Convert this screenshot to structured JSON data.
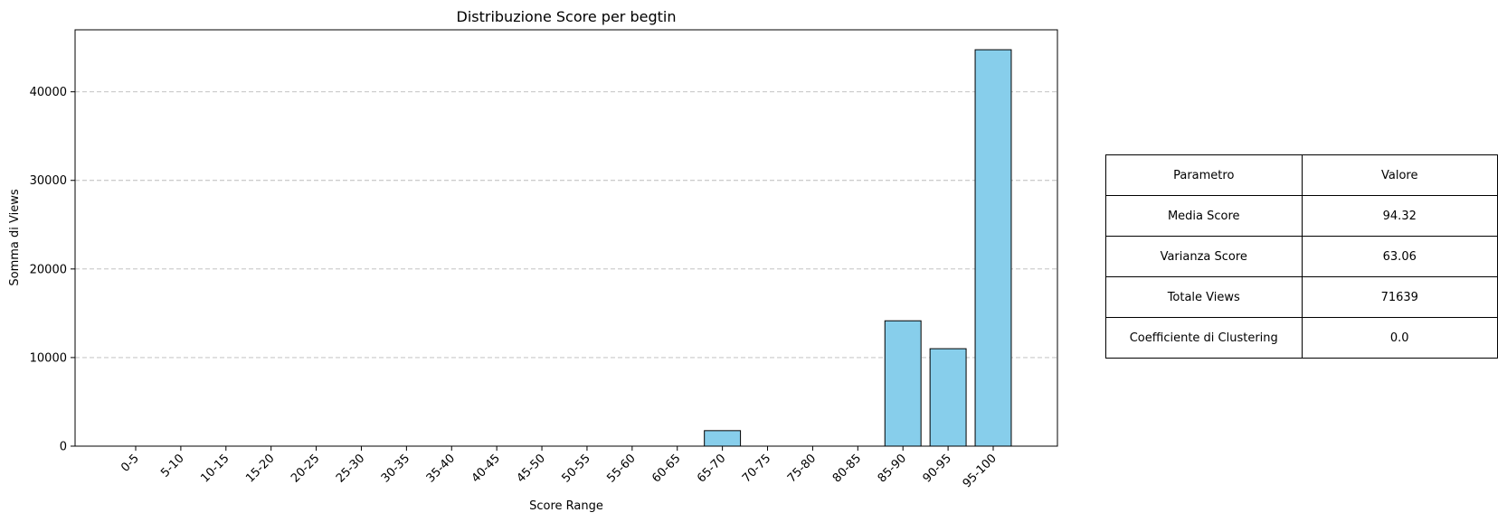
{
  "chart_data": {
    "type": "bar",
    "title": "Distribuzione Score per begtin",
    "xlabel": "Score Range",
    "ylabel": "Somma di Views",
    "categories": [
      "0-5",
      "5-10",
      "10-15",
      "15-20",
      "20-25",
      "25-30",
      "30-35",
      "35-40",
      "40-45",
      "45-50",
      "50-55",
      "55-60",
      "60-65",
      "65-70",
      "70-75",
      "75-80",
      "80-85",
      "85-90",
      "90-95",
      "95-100"
    ],
    "values": [
      0,
      0,
      0,
      0,
      0,
      0,
      0,
      0,
      0,
      0,
      0,
      0,
      0,
      1750,
      0,
      0,
      0,
      14150,
      11000,
      44750
    ],
    "ylim": [
      0,
      47000
    ],
    "yticks": [
      0,
      10000,
      20000,
      30000,
      40000
    ],
    "grid": "y-dashed",
    "bar_color": "#87CEEB",
    "edge_color": "#000000"
  },
  "table": {
    "header": [
      "Parametro",
      "Valore"
    ],
    "rows": [
      [
        "Media Score",
        "94.32"
      ],
      [
        "Varianza Score",
        "63.06"
      ],
      [
        "Totale Views",
        "71639"
      ],
      [
        "Coefficiente di Clustering",
        "0.0"
      ]
    ]
  }
}
